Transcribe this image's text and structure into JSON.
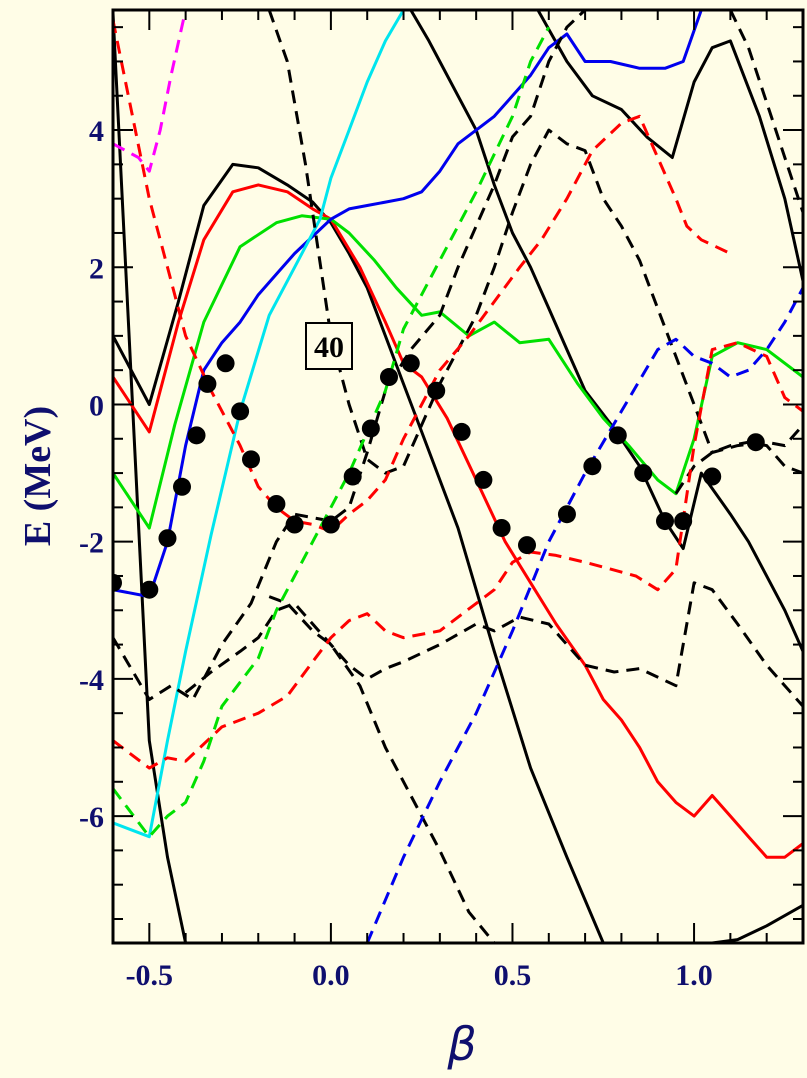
{
  "chart_data": {
    "type": "line",
    "title": "",
    "xlabel": "β",
    "ylabel": "E (MeV)",
    "xlim": [
      -0.6,
      1.3
    ],
    "ylim": [
      -7.85,
      5.75
    ],
    "xticks": [
      -0.5,
      0.0,
      0.5,
      1.0
    ],
    "xtick_labels": [
      "-0.5",
      "0.0",
      "0.5",
      "1.0"
    ],
    "yticks": [
      -6,
      -4,
      -2,
      0,
      2,
      4
    ],
    "ytick_labels": [
      "-6",
      "-4",
      "-2",
      "0",
      "2",
      "4"
    ],
    "grid": false,
    "legend": "none",
    "annotation": "40",
    "series": [
      {
        "color": "#000000",
        "dash": false,
        "x": [
          -0.6,
          -0.5,
          -0.45,
          -0.4
        ],
        "y": [
          5.7,
          -4.9,
          -6.6,
          -7.85
        ]
      },
      {
        "color": "#000000",
        "dash": false,
        "x": [
          -0.6,
          -0.5,
          -0.42,
          -0.35,
          -0.27,
          -0.2,
          -0.12,
          -0.05,
          0.0,
          0.05,
          0.1,
          0.15,
          0.2,
          0.25,
          0.35,
          0.45,
          0.55,
          0.65,
          0.75
        ],
        "y": [
          1.0,
          0.0,
          1.5,
          2.9,
          3.5,
          3.45,
          3.2,
          2.95,
          2.65,
          2.2,
          1.7,
          1.0,
          0.3,
          -0.4,
          -1.8,
          -3.6,
          -5.3,
          -6.6,
          -7.85
        ]
      },
      {
        "color": "#000000",
        "dash": false,
        "x": [
          0.22,
          0.27,
          0.3,
          0.35,
          0.4,
          0.45,
          0.5,
          0.55,
          0.6,
          0.65,
          0.7,
          0.78,
          0.85,
          0.92,
          0.97,
          1.02,
          1.1,
          1.15,
          1.25,
          1.3
        ],
        "y": [
          5.75,
          5.3,
          5.0,
          4.5,
          4.0,
          3.2,
          2.5,
          2.0,
          1.4,
          0.8,
          0.2,
          -0.35,
          -0.9,
          -1.7,
          -2.1,
          -1.0,
          -1.6,
          -2.0,
          -3.0,
          -3.6
        ]
      },
      {
        "color": "#000000",
        "dash": false,
        "x": [
          0.57,
          0.65,
          0.72,
          0.8,
          0.87,
          0.94,
          1.0,
          1.05,
          1.1,
          1.18,
          1.25,
          1.3
        ],
        "y": [
          5.75,
          5.0,
          4.5,
          4.3,
          3.9,
          3.6,
          4.7,
          5.2,
          5.3,
          4.2,
          3.0,
          1.8
        ]
      },
      {
        "color": "#000000",
        "dash": false,
        "x": [
          1.05,
          1.12,
          1.2,
          1.3
        ],
        "y": [
          -7.85,
          -7.8,
          -7.6,
          -7.3
        ]
      },
      {
        "color": "#ff0000",
        "dash": false,
        "x": [
          -0.6,
          -0.5,
          -0.42,
          -0.35,
          -0.27,
          -0.2,
          -0.12,
          -0.05,
          0.0,
          0.08,
          0.15,
          0.2,
          0.25,
          0.32,
          0.4,
          0.48,
          0.55,
          0.62,
          0.7,
          0.75,
          0.8,
          0.85,
          0.9,
          0.95,
          1.0,
          1.05,
          1.1,
          1.15,
          1.2,
          1.25,
          1.3
        ],
        "y": [
          0.4,
          -0.4,
          1.2,
          2.4,
          3.1,
          3.2,
          3.1,
          2.85,
          2.7,
          2.0,
          1.2,
          0.6,
          0.4,
          -0.2,
          -1.1,
          -2.0,
          -2.6,
          -3.2,
          -3.8,
          -4.3,
          -4.6,
          -5.0,
          -5.5,
          -5.8,
          -6.0,
          -5.7,
          -6.0,
          -6.3,
          -6.6,
          -6.6,
          -6.4
        ]
      },
      {
        "color": "#00e000",
        "dash": false,
        "x": [
          -0.6,
          -0.5,
          -0.43,
          -0.35,
          -0.25,
          -0.15,
          -0.08,
          0.0,
          0.05,
          0.12,
          0.18,
          0.25,
          0.3,
          0.38,
          0.45,
          0.52,
          0.6,
          0.68,
          0.75,
          0.82,
          0.9,
          0.95,
          1.0,
          1.05,
          1.12,
          1.2,
          1.3
        ],
        "y": [
          -1.0,
          -1.8,
          -0.3,
          1.2,
          2.3,
          2.65,
          2.75,
          2.7,
          2.5,
          2.1,
          1.7,
          1.3,
          1.35,
          1.0,
          1.2,
          0.9,
          0.95,
          0.3,
          -0.2,
          -0.6,
          -1.1,
          -1.3,
          -0.5,
          0.7,
          0.9,
          0.8,
          0.4
        ]
      },
      {
        "color": "#0000ee",
        "dash": false,
        "x": [
          -0.6,
          -0.5,
          -0.45,
          -0.4,
          -0.35,
          -0.3,
          -0.25,
          -0.2,
          -0.15,
          -0.1,
          -0.05,
          0.0,
          0.05,
          0.1,
          0.15,
          0.2,
          0.25,
          0.3,
          0.35,
          0.4,
          0.45,
          0.5,
          0.55,
          0.6,
          0.65,
          0.7,
          0.77,
          0.85,
          0.92,
          0.97,
          1.02
        ],
        "y": [
          -2.7,
          -2.8,
          -2.0,
          -0.6,
          0.5,
          0.9,
          1.2,
          1.6,
          1.9,
          2.2,
          2.45,
          2.7,
          2.85,
          2.9,
          2.95,
          3.0,
          3.1,
          3.4,
          3.8,
          4.0,
          4.2,
          4.5,
          4.8,
          5.2,
          5.4,
          5.0,
          5.0,
          4.9,
          4.9,
          5.0,
          5.75
        ]
      },
      {
        "color": "#00e5ee",
        "dash": false,
        "x": [
          -0.6,
          -0.5,
          -0.45,
          -0.4,
          -0.33,
          -0.25,
          -0.17,
          -0.1,
          -0.03,
          0.0,
          0.05,
          0.1,
          0.15,
          0.2,
          0.23
        ],
        "y": [
          -6.1,
          -6.3,
          -4.9,
          -3.6,
          -1.9,
          -0.1,
          1.3,
          2.0,
          2.7,
          3.3,
          4.0,
          4.7,
          5.3,
          5.75,
          5.75
        ]
      },
      {
        "color": "#ff00ff",
        "dash": true,
        "x": [
          -0.6,
          -0.53,
          -0.5,
          -0.47,
          -0.44,
          -0.4
        ],
        "y": [
          3.8,
          3.6,
          3.4,
          4.0,
          4.8,
          5.75
        ]
      },
      {
        "color": "#000000",
        "dash": true,
        "x": [
          -0.6,
          -0.5,
          -0.44,
          -0.38,
          -0.3,
          -0.22,
          -0.15,
          -0.1,
          -0.05,
          0.0,
          0.05,
          0.1,
          0.15,
          0.22,
          0.3,
          0.35,
          0.4,
          0.45,
          0.5,
          0.55,
          0.6,
          0.65,
          0.7,
          0.78
        ],
        "y": [
          -3.4,
          -4.3,
          -4.1,
          -4.3,
          -3.5,
          -2.9,
          -2.0,
          -1.6,
          -1.65,
          -1.7,
          -1.5,
          -0.7,
          0.2,
          0.8,
          1.3,
          2.0,
          2.6,
          3.2,
          3.9,
          4.2,
          5.0,
          5.5,
          5.75,
          5.75
        ]
      },
      {
        "color": "#000000",
        "dash": true,
        "x": [
          -0.4,
          -0.33,
          -0.25,
          -0.2,
          -0.15,
          -0.1,
          -0.05,
          0.0,
          0.05,
          0.1,
          0.15,
          0.2,
          0.3,
          0.4,
          0.45,
          0.52,
          0.6,
          0.65,
          0.7,
          0.78,
          0.85,
          0.95,
          1.0,
          1.05,
          1.12,
          1.2,
          1.3
        ],
        "y": [
          -4.2,
          -3.9,
          -3.6,
          -3.4,
          -3.0,
          -2.9,
          -3.2,
          -3.5,
          -3.8,
          -4.0,
          -3.85,
          -3.75,
          -3.5,
          -3.2,
          -3.3,
          -3.1,
          -3.2,
          -3.5,
          -3.8,
          -3.9,
          -3.85,
          -4.1,
          -2.6,
          -2.7,
          -3.2,
          -3.8,
          -4.4
        ]
      },
      {
        "color": "#000000",
        "dash": true,
        "x": [
          -0.17,
          -0.12,
          -0.05,
          0.0,
          0.08,
          0.15,
          0.22,
          0.3,
          0.38,
          0.45,
          0.5
        ],
        "y": [
          -2.8,
          -2.9,
          -3.3,
          -3.5,
          -4.1,
          -5.0,
          -5.7,
          -6.5,
          -7.4,
          -7.85,
          -7.85
        ]
      },
      {
        "color": "#000000",
        "dash": true,
        "x": [
          -0.17,
          -0.12,
          -0.07,
          0.0,
          0.05,
          0.1,
          0.15,
          0.2,
          0.3,
          0.4,
          0.45,
          0.5,
          0.55,
          0.6,
          0.65,
          0.7,
          0.75,
          0.8,
          0.85,
          0.9,
          0.95,
          1.0,
          1.05,
          1.12,
          1.2,
          1.25,
          1.3
        ],
        "y": [
          5.75,
          5.0,
          3.5,
          1.0,
          0.0,
          -0.8,
          -1.0,
          -0.9,
          0.3,
          1.3,
          2.0,
          2.8,
          3.5,
          4.0,
          3.8,
          3.7,
          3.0,
          2.6,
          2.1,
          1.4,
          0.7,
          0.0,
          -0.7,
          -0.6,
          -0.55,
          -0.6,
          -0.3
        ]
      },
      {
        "color": "#000000",
        "dash": true,
        "x": [
          0.95,
          1.0,
          1.05,
          1.1,
          1.15,
          1.2,
          1.25,
          1.3
        ],
        "y": [
          -1.3,
          -0.9,
          -0.7,
          -0.6,
          -0.55,
          -0.6,
          -0.9,
          -1.0
        ]
      },
      {
        "color": "#000000",
        "dash": true,
        "x": [
          1.1,
          1.15,
          1.2,
          1.25,
          1.3
        ],
        "y": [
          5.75,
          5.2,
          4.4,
          3.6,
          2.8
        ]
      },
      {
        "color": "#ff0000",
        "dash": true,
        "x": [
          -0.6,
          -0.5,
          -0.45,
          -0.4,
          -0.33,
          -0.25,
          -0.2,
          -0.15,
          -0.1,
          -0.05,
          0.0,
          0.05,
          0.1,
          0.15,
          0.2,
          0.25,
          0.3,
          0.38,
          0.45,
          0.52,
          0.58,
          0.65,
          0.72,
          0.8,
          0.85,
          0.9,
          0.95,
          0.98,
          1.02,
          1.1
        ],
        "y": [
          5.6,
          3.0,
          2.0,
          1.0,
          0.2,
          -0.6,
          -1.2,
          -1.5,
          -1.7,
          -1.75,
          -1.85,
          -1.6,
          -1.4,
          -1.1,
          -0.5,
          0.0,
          0.5,
          1.0,
          1.5,
          2.0,
          2.4,
          3.0,
          3.7,
          4.1,
          4.2,
          3.6,
          3.0,
          2.6,
          2.4,
          2.2
        ]
      },
      {
        "color": "#ff0000",
        "dash": true,
        "x": [
          -0.6,
          -0.5,
          -0.45,
          -0.4,
          -0.3,
          -0.2,
          -0.12,
          -0.05,
          0.0,
          0.05,
          0.1,
          0.15,
          0.2,
          0.3,
          0.4,
          0.45,
          0.5,
          0.55,
          0.62,
          0.7,
          0.77,
          0.84,
          0.9,
          0.95,
          1.0,
          1.05,
          1.12,
          1.2,
          1.25,
          1.3
        ],
        "y": [
          -4.9,
          -5.3,
          -5.15,
          -5.2,
          -4.7,
          -4.5,
          -4.25,
          -3.75,
          -3.4,
          -3.15,
          -3.05,
          -3.3,
          -3.4,
          -3.3,
          -2.9,
          -2.7,
          -2.3,
          -2.15,
          -2.2,
          -2.3,
          -2.4,
          -2.5,
          -2.7,
          -2.4,
          -0.6,
          0.8,
          0.9,
          0.7,
          0.1,
          -0.1
        ]
      },
      {
        "color": "#00e000",
        "dash": true,
        "x": [
          -0.6,
          -0.5,
          -0.45,
          -0.4,
          -0.35,
          -0.3,
          -0.2,
          -0.15,
          -0.1,
          -0.05,
          0.0,
          0.05,
          0.1,
          0.15,
          0.2,
          0.3,
          0.4,
          0.5,
          0.55,
          0.6
        ],
        "y": [
          -5.6,
          -6.3,
          -6.0,
          -5.8,
          -5.2,
          -4.4,
          -3.7,
          -3.0,
          -2.5,
          -2.0,
          -1.5,
          -1.0,
          -0.4,
          0.2,
          1.1,
          2.1,
          3.1,
          4.2,
          5.0,
          5.5
        ]
      },
      {
        "color": "#0000ee",
        "dash": true,
        "x": [
          0.1,
          0.2,
          0.3,
          0.4,
          0.5,
          0.6,
          0.7,
          0.8,
          0.9,
          0.95,
          1.0,
          1.05,
          1.1,
          1.15,
          1.2,
          1.25,
          1.3
        ],
        "y": [
          -7.85,
          -6.6,
          -5.5,
          -4.5,
          -3.3,
          -2.0,
          -1.0,
          -0.1,
          0.8,
          0.95,
          0.7,
          0.6,
          0.4,
          0.5,
          0.8,
          1.2,
          1.7
        ]
      }
    ],
    "points": {
      "name": "",
      "x": [
        -0.6,
        -0.5,
        -0.45,
        -0.41,
        -0.37,
        -0.34,
        -0.29,
        -0.25,
        -0.22,
        -0.15,
        -0.1,
        0.0,
        0.06,
        0.11,
        0.16,
        0.22,
        0.29,
        0.36,
        0.42,
        0.47,
        0.54,
        0.65,
        0.72,
        0.79,
        0.86,
        0.92,
        0.97,
        1.05,
        1.17
      ],
      "y": [
        -2.6,
        -2.7,
        -1.95,
        -1.2,
        -0.45,
        0.3,
        0.6,
        -0.1,
        -0.8,
        -1.45,
        -1.75,
        -1.75,
        -1.05,
        -0.35,
        0.4,
        0.6,
        0.2,
        -0.4,
        -1.1,
        -1.8,
        -2.05,
        -1.6,
        -0.9,
        -0.45,
        -1.0,
        -1.7,
        -1.7,
        -1.05,
        -0.55
      ]
    }
  }
}
